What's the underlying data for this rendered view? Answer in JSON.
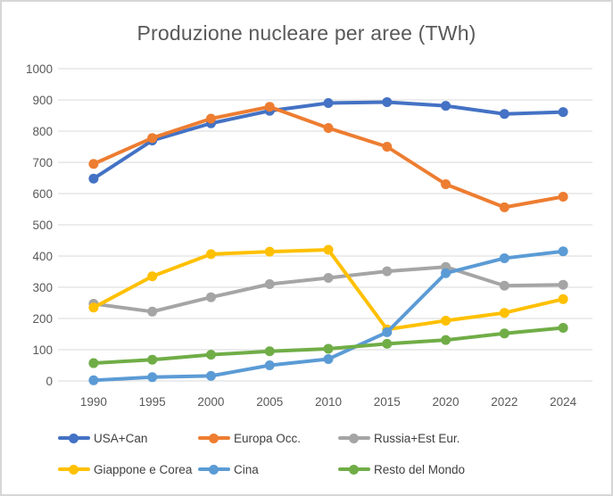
{
  "window": {
    "background_color": "#FFFFFF",
    "border_color": "#D6D6D6"
  },
  "chart_data": {
    "type": "line",
    "title": "Produzione nucleare per aree (TWh)",
    "categories": [
      "1990",
      "1995",
      "2000",
      "2005",
      "2010",
      "2015",
      "2020",
      "2022",
      "2024"
    ],
    "series": [
      {
        "name": "USA+Can",
        "color": "#4472C4",
        "values": [
          648,
          770,
          825,
          865,
          890,
          893,
          881,
          855,
          861
        ]
      },
      {
        "name": "Europa Occ.",
        "color": "#ED7D31",
        "values": [
          695,
          778,
          840,
          878,
          810,
          750,
          630,
          556,
          590
        ]
      },
      {
        "name": "Russia+Est Eur.",
        "color": "#A5A5A5",
        "values": [
          247,
          222,
          268,
          310,
          330,
          351,
          365,
          305,
          308
        ]
      },
      {
        "name": "Giappone e Corea",
        "color": "#FFC000",
        "values": [
          235,
          335,
          406,
          414,
          420,
          165,
          193,
          218,
          262
        ]
      },
      {
        "name": "Cina",
        "color": "#5B9BD5",
        "values": [
          2,
          12,
          16,
          50,
          70,
          156,
          345,
          393,
          415
        ]
      },
      {
        "name": "Resto del Mondo",
        "color": "#70AD47",
        "values": [
          57,
          68,
          84,
          95,
          103,
          119,
          131,
          152,
          170
        ]
      }
    ],
    "xlabel": "",
    "ylabel": "",
    "ylim": [
      0,
      1000
    ],
    "ytick_step": 100,
    "yticks": [
      "0",
      "100",
      "200",
      "300",
      "400",
      "500",
      "600",
      "700",
      "800",
      "900",
      "1000"
    ],
    "grid": true,
    "gridline_color": "#D9D9D9",
    "title_color": "#595959",
    "axis_label_color": "#595959",
    "legend_text_color": "#404040",
    "legend_position": "bottom",
    "legend_rows": [
      [
        "USA+Can",
        "Europa Occ.",
        "Russia+Est Eur."
      ],
      [
        "Giappone e Corea",
        "Cina",
        "Resto del Mondo"
      ]
    ]
  }
}
